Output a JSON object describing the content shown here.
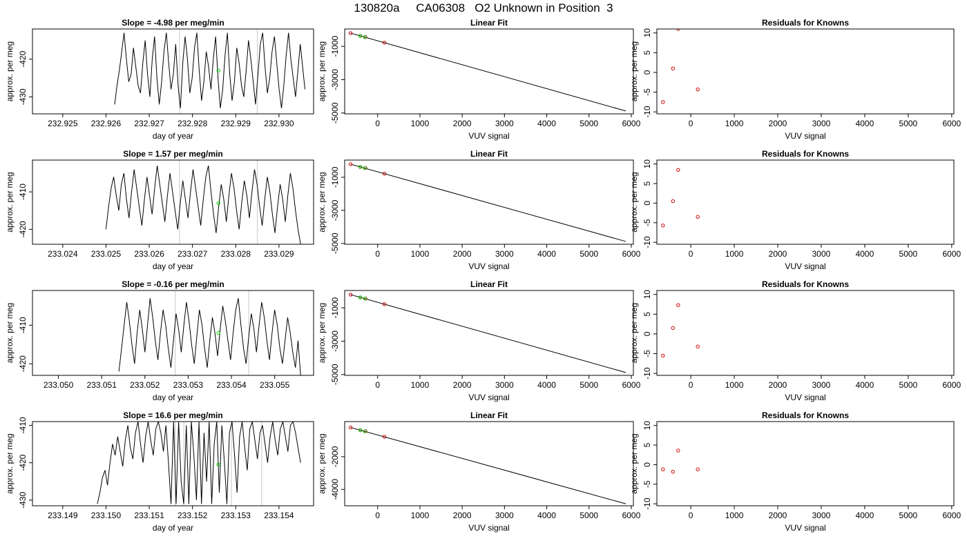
{
  "page_title": "130820a     CA06308   O2 Unknown in Position  3",
  "chart_data": [
    {
      "id": "ts1",
      "type": "line",
      "row": 0,
      "col": 0,
      "title": "Slope =  -4.98  per meg/min",
      "xlabel": "day of year",
      "ylabel": "approx. per meg",
      "xlim": [
        232.9243,
        232.9308
      ],
      "ylim": [
        -434.5,
        -412
      ],
      "xticks": [
        232.925,
        232.926,
        232.927,
        232.928,
        232.929,
        232.93
      ],
      "xtick_labels": [
        "232.925",
        "232.926",
        "232.927",
        "232.928",
        "232.929",
        "232.930"
      ],
      "yticks": [
        -420,
        -430
      ],
      "ytick_labels": [
        "-420",
        "-430"
      ],
      "vlines": [
        232.9277,
        232.9295
      ],
      "x_start": 232.9262,
      "x_end": 232.9306,
      "y": [
        -432,
        -427,
        -423,
        -418,
        -413,
        -420,
        -426,
        -424,
        -417,
        -422,
        -427,
        -429,
        -421,
        -415,
        -424,
        -430,
        -420,
        -414,
        -425,
        -432,
        -426,
        -418,
        -413,
        -421,
        -428,
        -424,
        -416,
        -427,
        -433,
        -421,
        -414,
        -420,
        -429,
        -425,
        -417,
        -413,
        -423,
        -431,
        -426,
        -418,
        -422,
        -428,
        -420,
        -414,
        -425,
        -433,
        -428,
        -419,
        -413,
        -424,
        -431,
        -426,
        -417,
        -421,
        -427,
        -430,
        -423,
        -415,
        -420,
        -426,
        -432,
        -424,
        -416,
        -413,
        -422,
        -429,
        -425,
        -418,
        -414,
        -421,
        -428,
        -433,
        -427,
        -419,
        -413,
        -420,
        -425,
        -430,
        -423,
        -416,
        -422,
        -428
      ],
      "marker": {
        "x": 232.9286,
        "y": -423
      }
    },
    {
      "id": "fit1",
      "type": "line",
      "row": 0,
      "col": 1,
      "title": "Linear Fit",
      "xlabel": "VUV signal",
      "ylabel": "approx. per meg",
      "xlim": [
        -780,
        6050
      ],
      "ylim": [
        -5050,
        40
      ],
      "xticks": [
        0,
        1000,
        2000,
        3000,
        4000,
        5000,
        6000
      ],
      "xtick_labels": [
        "0",
        "1000",
        "2000",
        "3000",
        "4000",
        "5000",
        "6000"
      ],
      "yticks": [
        -1000,
        -3000,
        -5000
      ],
      "ytick_labels": [
        "-1000",
        "-3000",
        "-5000"
      ],
      "line": [
        [
          -640,
          -210
        ],
        [
          5870,
          -4880
        ]
      ],
      "red_points": [
        [
          -640,
          -210
        ],
        [
          -410,
          -380
        ],
        [
          -290,
          -440
        ],
        [
          160,
          -780
        ]
      ],
      "green_points": [
        [
          -410,
          -370
        ],
        [
          -300,
          -445
        ]
      ]
    },
    {
      "id": "res1",
      "type": "scatter",
      "row": 0,
      "col": 2,
      "title": "Residuals for Knowns",
      "xlabel": "VUV signal",
      "ylabel": "",
      "xlim": [
        -780,
        6050
      ],
      "ylim": [
        -10.5,
        11
      ],
      "xticks": [
        0,
        1000,
        2000,
        3000,
        4000,
        5000,
        6000
      ],
      "xtick_labels": [
        "0",
        "1000",
        "2000",
        "3000",
        "4000",
        "5000",
        "6000"
      ],
      "yticks": [
        10,
        5,
        0,
        -5,
        -10
      ],
      "ytick_labels": [
        "10",
        "5",
        "0",
        "-5",
        "-10"
      ],
      "points": [
        [
          -640,
          -7.5
        ],
        [
          -410,
          1.0
        ],
        [
          -290,
          11.0
        ],
        [
          160,
          -4.3
        ]
      ]
    },
    {
      "id": "ts2",
      "type": "line",
      "row": 1,
      "col": 0,
      "title": "Slope =  1.57  per meg/min",
      "xlabel": "day of year",
      "ylabel": "approx. per meg",
      "xlim": [
        233.0233,
        233.0298
      ],
      "ylim": [
        -424,
        -401.5
      ],
      "xticks": [
        233.024,
        233.025,
        233.026,
        233.027,
        233.028,
        233.029
      ],
      "xtick_labels": [
        "233.024",
        "233.025",
        "233.026",
        "233.027",
        "233.028",
        "233.029"
      ],
      "yticks": [
        -410,
        -420
      ],
      "ytick_labels": [
        "-410",
        "-420"
      ],
      "vlines": [
        233.0267,
        233.0285
      ],
      "x_start": 233.025,
      "x_end": 233.0295,
      "y": [
        -420,
        -414,
        -409,
        -406,
        -411,
        -415,
        -408,
        -405,
        -412,
        -417,
        -410,
        -404,
        -409,
        -414,
        -419,
        -412,
        -406,
        -411,
        -416,
        -409,
        -403,
        -408,
        -413,
        -418,
        -411,
        -405,
        -410,
        -415,
        -420,
        -413,
        -407,
        -412,
        -417,
        -410,
        -404,
        -409,
        -414,
        -419,
        -412,
        -406,
        -403,
        -410,
        -416,
        -421,
        -414,
        -408,
        -412,
        -418,
        -411,
        -405,
        -409,
        -415,
        -420,
        -413,
        -407,
        -411,
        -417,
        -410,
        -404,
        -408,
        -414,
        -419,
        -412,
        -406,
        -410,
        -416,
        -421,
        -414,
        -408,
        -412,
        -418,
        -411,
        -405,
        -409,
        -415,
        -420,
        -424
      ],
      "marker": {
        "x": 233.0276,
        "y": -413
      }
    },
    {
      "id": "fit2",
      "type": "line",
      "row": 1,
      "col": 1,
      "title": "Linear Fit",
      "xlabel": "VUV signal",
      "ylabel": "approx. per meg",
      "xlim": [
        -780,
        6050
      ],
      "ylim": [
        -5050,
        40
      ],
      "xticks": [
        0,
        1000,
        2000,
        3000,
        4000,
        5000,
        6000
      ],
      "xtick_labels": [
        "0",
        "1000",
        "2000",
        "3000",
        "4000",
        "5000",
        "6000"
      ],
      "yticks": [
        -1000,
        -3000,
        -5000
      ],
      "ytick_labels": [
        "-1000",
        "-3000",
        "-5000"
      ],
      "line": [
        [
          -640,
          -210
        ],
        [
          5870,
          -4880
        ]
      ],
      "red_points": [
        [
          -640,
          -210
        ],
        [
          -410,
          -380
        ],
        [
          -290,
          -440
        ],
        [
          160,
          -780
        ]
      ],
      "green_points": [
        [
          -410,
          -370
        ],
        [
          -300,
          -445
        ]
      ]
    },
    {
      "id": "res2",
      "type": "scatter",
      "row": 1,
      "col": 2,
      "title": "Residuals for Knowns",
      "xlabel": "VUV signal",
      "ylabel": "",
      "xlim": [
        -780,
        6050
      ],
      "ylim": [
        -10.5,
        11
      ],
      "xticks": [
        0,
        1000,
        2000,
        3000,
        4000,
        5000,
        6000
      ],
      "xtick_labels": [
        "0",
        "1000",
        "2000",
        "3000",
        "4000",
        "5000",
        "6000"
      ],
      "yticks": [
        10,
        5,
        0,
        -5,
        -10
      ],
      "ytick_labels": [
        "10",
        "5",
        "0",
        "-5",
        "-10"
      ],
      "points": [
        [
          -640,
          -5.7
        ],
        [
          -410,
          0.5
        ],
        [
          -290,
          8.5
        ],
        [
          160,
          -3.5
        ]
      ]
    },
    {
      "id": "ts3",
      "type": "line",
      "row": 2,
      "col": 0,
      "title": "Slope =  -0.16  per meg/min",
      "xlabel": "day of year",
      "ylabel": "approx. per meg",
      "xlim": [
        233.0494,
        233.0559
      ],
      "ylim": [
        -423,
        -401
      ],
      "xticks": [
        233.05,
        233.051,
        233.052,
        233.053,
        233.054,
        233.055
      ],
      "xtick_labels": [
        "233.050",
        "233.051",
        "233.052",
        "233.053",
        "233.054",
        "233.055"
      ],
      "yticks": [
        -410,
        -420
      ],
      "ytick_labels": [
        "-410",
        "-420"
      ],
      "vlines": [
        233.0527,
        233.0544
      ],
      "x_start": 233.0514,
      "x_end": 233.0556,
      "y": [
        -422,
        -416,
        -410,
        -404,
        -409,
        -415,
        -420,
        -412,
        -406,
        -411,
        -417,
        -410,
        -403,
        -408,
        -414,
        -419,
        -412,
        -406,
        -410,
        -416,
        -421,
        -414,
        -407,
        -411,
        -417,
        -410,
        -404,
        -409,
        -415,
        -420,
        -413,
        -406,
        -410,
        -416,
        -421,
        -414,
        -408,
        -412,
        -418,
        -411,
        -405,
        -409,
        -414,
        -419,
        -412,
        -406,
        -403,
        -410,
        -416,
        -420,
        -413,
        -407,
        -411,
        -417,
        -410,
        -404,
        -408,
        -414,
        -419,
        -412,
        -406,
        -410,
        -416,
        -420,
        -414,
        -408,
        -412,
        -417,
        -421,
        -414,
        -423
      ],
      "marker": {
        "x": 233.0537,
        "y": -412
      }
    },
    {
      "id": "fit3",
      "type": "line",
      "row": 2,
      "col": 1,
      "title": "Linear Fit",
      "xlabel": "VUV signal",
      "ylabel": "approx. per meg",
      "xlim": [
        -780,
        6050
      ],
      "ylim": [
        -5050,
        40
      ],
      "xticks": [
        0,
        1000,
        2000,
        3000,
        4000,
        5000,
        6000
      ],
      "xtick_labels": [
        "0",
        "1000",
        "2000",
        "3000",
        "4000",
        "5000",
        "6000"
      ],
      "yticks": [
        -1000,
        -3000,
        -5000
      ],
      "ytick_labels": [
        "-1000",
        "-3000",
        "-5000"
      ],
      "line": [
        [
          -640,
          -210
        ],
        [
          5870,
          -4880
        ]
      ],
      "red_points": [
        [
          -640,
          -210
        ],
        [
          -410,
          -380
        ],
        [
          -290,
          -440
        ],
        [
          160,
          -780
        ]
      ],
      "green_points": [
        [
          -410,
          -370
        ],
        [
          -300,
          -445
        ]
      ]
    },
    {
      "id": "res3",
      "type": "scatter",
      "row": 2,
      "col": 2,
      "title": "Residuals for Knowns",
      "xlabel": "VUV signal",
      "ylabel": "",
      "xlim": [
        -780,
        6050
      ],
      "ylim": [
        -10.5,
        11
      ],
      "xticks": [
        0,
        1000,
        2000,
        3000,
        4000,
        5000,
        6000
      ],
      "xtick_labels": [
        "0",
        "1000",
        "2000",
        "3000",
        "4000",
        "5000",
        "6000"
      ],
      "yticks": [
        10,
        5,
        0,
        -5,
        -10
      ],
      "ytick_labels": [
        "10",
        "5",
        "0",
        "-5",
        "-10"
      ],
      "points": [
        [
          -640,
          -5.5
        ],
        [
          -410,
          1.5
        ],
        [
          -290,
          7.3
        ],
        [
          160,
          -3.2
        ]
      ]
    },
    {
      "id": "ts4",
      "type": "line",
      "row": 3,
      "col": 0,
      "title": "Slope =  16.6  per meg/min",
      "xlabel": "day of year",
      "ylabel": "approx. per meg",
      "xlim": [
        233.1483,
        233.1548
      ],
      "ylim": [
        -431.5,
        -409
      ],
      "xticks": [
        233.149,
        233.15,
        233.151,
        233.152,
        233.153,
        233.154
      ],
      "xtick_labels": [
        "233.149",
        "233.150",
        "233.151",
        "233.152",
        "233.153",
        "233.154"
      ],
      "yticks": [
        -410,
        -420,
        -430
      ],
      "ytick_labels": [
        "-410",
        "-420",
        "-430"
      ],
      "vlines": [
        233.1516,
        233.1518,
        233.1529,
        233.1536
      ],
      "x_start": 233.1498,
      "x_end": 233.1545,
      "y": [
        -431,
        -428,
        -424,
        -422,
        -426,
        -420,
        -415,
        -418,
        -413,
        -417,
        -421,
        -414,
        -410,
        -416,
        -419,
        -412,
        -409,
        -415,
        -420,
        -413,
        -409,
        -414,
        -418,
        -411,
        -409,
        -412,
        -417,
        -410,
        -420,
        -431,
        -409,
        -431,
        -409,
        -425,
        -431,
        -410,
        -431,
        -409,
        -418,
        -430,
        -409,
        -431,
        -412,
        -425,
        -409,
        -431,
        -415,
        -409,
        -428,
        -410,
        -420,
        -431,
        -412,
        -409,
        -418,
        -428,
        -413,
        -409,
        -416,
        -422,
        -411,
        -409,
        -414,
        -419,
        -412,
        -410,
        -415,
        -420,
        -413,
        -409,
        -414,
        -418,
        -411,
        -409,
        -413,
        -417,
        -410,
        -409,
        -412,
        -416,
        -420
      ],
      "marker": {
        "x": 233.1526,
        "y": -420.5
      }
    },
    {
      "id": "fit4",
      "type": "line",
      "row": 3,
      "col": 1,
      "title": "Linear Fit",
      "xlabel": "VUV signal",
      "ylabel": "approx. per meg",
      "xlim": [
        -780,
        6050
      ],
      "ylim": [
        -5000,
        150
      ],
      "xticks": [
        0,
        1000,
        2000,
        3000,
        4000,
        5000,
        6000
      ],
      "xtick_labels": [
        "0",
        "1000",
        "2000",
        "3000",
        "4000",
        "5000",
        "6000"
      ],
      "yticks": [
        -2000,
        -4000
      ],
      "ytick_labels": [
        "-2000",
        "-4000"
      ],
      "line": [
        [
          -640,
          -210
        ],
        [
          5870,
          -4880
        ]
      ],
      "red_points": [
        [
          -640,
          -210
        ],
        [
          -410,
          -380
        ],
        [
          -290,
          -440
        ],
        [
          160,
          -780
        ]
      ],
      "green_points": [
        [
          -410,
          -370
        ],
        [
          -300,
          -445
        ]
      ]
    },
    {
      "id": "res4",
      "type": "scatter",
      "row": 3,
      "col": 2,
      "title": "Residuals for Knowns",
      "xlabel": "VUV signal",
      "ylabel": "",
      "xlim": [
        -780,
        6050
      ],
      "ylim": [
        -10.5,
        11
      ],
      "xticks": [
        0,
        1000,
        2000,
        3000,
        4000,
        5000,
        6000
      ],
      "xtick_labels": [
        "0",
        "1000",
        "2000",
        "3000",
        "4000",
        "5000",
        "6000"
      ],
      "yticks": [
        10,
        5,
        0,
        -5,
        -10
      ],
      "ytick_labels": [
        "10",
        "5",
        "0",
        "-5",
        "-10"
      ],
      "points": [
        [
          -640,
          -1.2
        ],
        [
          -410,
          -1.8
        ],
        [
          -290,
          3.6
        ],
        [
          160,
          -1.2
        ]
      ]
    }
  ],
  "colors": {
    "line": "#000000",
    "red": "#d00000",
    "green": "#00cc00",
    "vline": "#c8c8c8",
    "text": "#000000"
  },
  "residuals_ylabel": "approx. per meg"
}
